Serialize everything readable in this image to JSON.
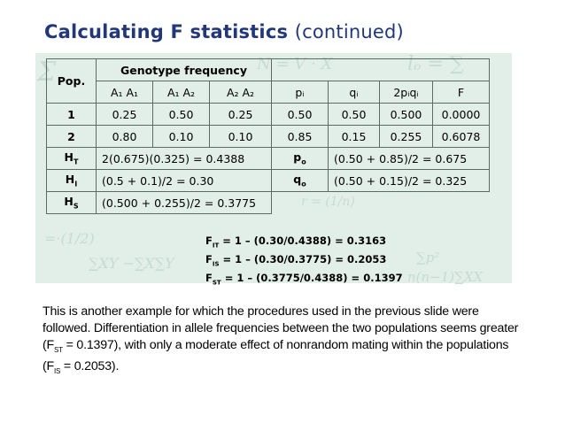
{
  "title": {
    "main": "Calculating F statistics",
    "cont": "(continued)"
  },
  "table": {
    "pop_label": "Pop.",
    "genotype_header": "Genotype frequency",
    "col_headers": {
      "a1a1": "A₁ A₁",
      "a1a2": "A₁ A₂",
      "a2a2": "A₂ A₂",
      "p": "pᵢ",
      "q": "qᵢ",
      "het": "2pᵢqᵢ",
      "f": "F"
    },
    "rows": [
      {
        "pop": "1",
        "a1a1": "0.25",
        "a1a2": "0.50",
        "a2a2": "0.25",
        "p": "0.50",
        "q": "0.50",
        "het": "0.500",
        "f": "0.0000"
      },
      {
        "pop": "2",
        "a1a1": "0.80",
        "a1a2": "0.10",
        "a2a2": "0.10",
        "p": "0.85",
        "q": "0.15",
        "het": "0.255",
        "f": "0.6078"
      }
    ],
    "ht_label": "H",
    "ht_sub": "T",
    "ht_value": "2(0.675)(0.325) = 0.4388",
    "p0_label": "p",
    "p0_sub": "o",
    "p0_value": "(0.50 + 0.85)/2 = 0.675",
    "hi_label": "H",
    "hi_sub": "I",
    "hi_value": "(0.5 + 0.1)/2 = 0.30",
    "q0_label": "q",
    "q0_sub": "o",
    "q0_value": "(0.50 + 0.15)/2 = 0.325",
    "hs_label": "H",
    "hs_sub": "S",
    "hs_value": "(0.500 + 0.255)/2 = 0.3775"
  },
  "equations": [
    {
      "pre": "F",
      "sub": "IT",
      "post": " = 1 – (0.30/0.4388) = 0.3163"
    },
    {
      "pre": "F",
      "sub": "IS",
      "post": " = 1 – (0.30/0.3775) = 0.2053"
    },
    {
      "pre": "F",
      "sub": "ST",
      "post": " = 1 – (0.3775/0.4388) = 0.1397"
    }
  ],
  "paragraph": {
    "s1": "This is another example for which the procedures used in the previous slide were followed. Differentiation in allele frequencies between the two populations seems greater (F",
    "sub1": "ST",
    "s2": " = 0.1397), with only a moderate effect of nonrandom mating within the populations (F",
    "sub2": "IS",
    "s3": " = 0.2053)."
  }
}
